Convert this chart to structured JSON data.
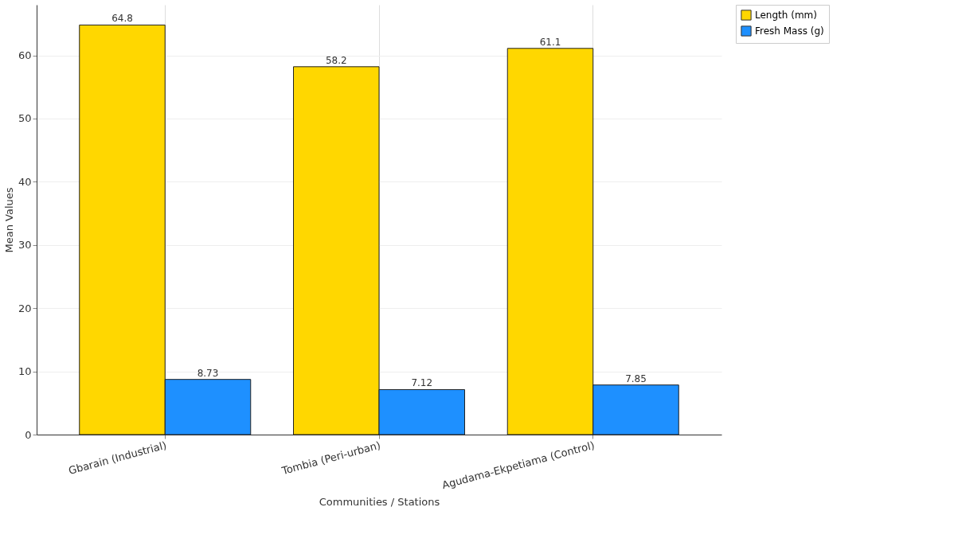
{
  "chart_data": {
    "type": "bar",
    "xlabel": "Communities / Stations",
    "ylabel": "Mean Values",
    "categories": [
      "Gbarain (Industrial)",
      "Tombia (Peri-urban)",
      "Agudama-Ekpetiama (Control)"
    ],
    "series": [
      {
        "name": "Length (mm)",
        "color": "#ffd700",
        "values": [
          64.8,
          58.2,
          61.1
        ]
      },
      {
        "name": "Fresh Mass (g)",
        "color": "#1e90ff",
        "values": [
          8.73,
          7.12,
          7.85
        ]
      }
    ],
    "ylim": [
      0,
      68
    ],
    "yticks": [
      0,
      10,
      20,
      30,
      40,
      50,
      60
    ],
    "grid": true,
    "legend": "top right",
    "data_labels": true
  }
}
